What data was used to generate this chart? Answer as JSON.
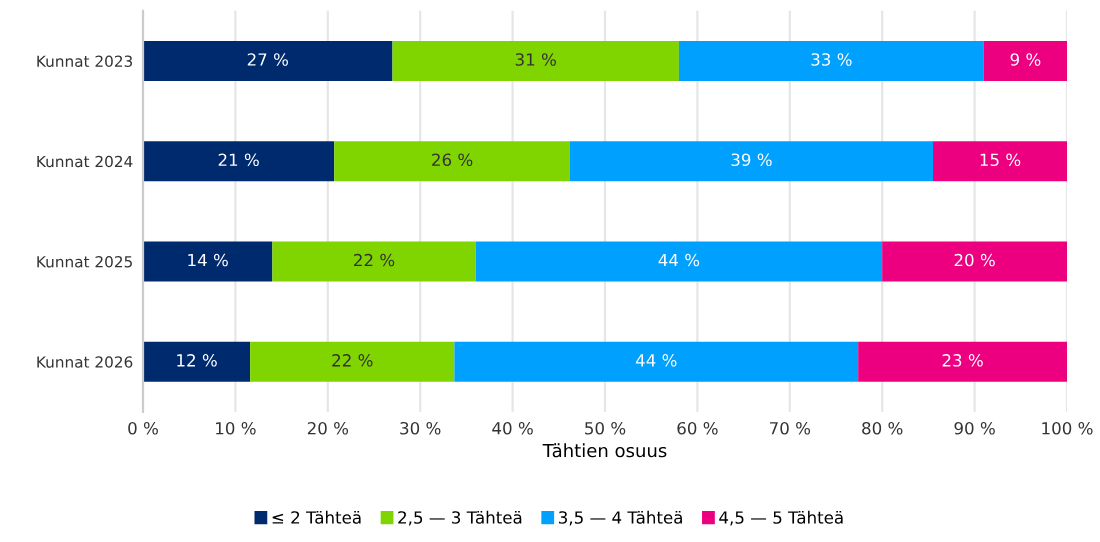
{
  "chart_data": {
    "type": "bar",
    "orientation": "horizontal",
    "stacked": true,
    "categories": [
      "Kunnat 2023",
      "Kunnat 2024",
      "Kunnat 2025",
      "Kunnat 2026"
    ],
    "xlabel": "Tähtien osuus",
    "series": [
      {
        "name": "≤ 2 Tähteä",
        "color": "#002a6e",
        "values": [
          27,
          20.7,
          14,
          11.6
        ],
        "value_labels": [
          "27 %",
          "21 %",
          "14 %",
          "12 %"
        ]
      },
      {
        "name": "2,5 — 3 Tähteä",
        "color": "#80d400",
        "values": [
          31,
          25.5,
          22,
          22.1
        ],
        "value_labels": [
          "31 %",
          "26 %",
          "22 %",
          "22 %"
        ]
      },
      {
        "name": "3,5 — 4 Tähteä",
        "color": "#00a0ff",
        "values": [
          33,
          39.3,
          44,
          43.7
        ],
        "value_labels": [
          "33 %",
          "39 %",
          "44 %",
          "44 %"
        ]
      },
      {
        "name": "4,5 — 5 Tähteä",
        "color": "#ec0080",
        "values": [
          9,
          14.5,
          20,
          22.6
        ],
        "value_labels": [
          "9 %",
          "15 %",
          "20 %",
          "23 %"
        ]
      }
    ],
    "xlim": [
      0,
      100
    ],
    "xticks": [
      {
        "value": 0,
        "label": "0 %"
      },
      {
        "value": 10,
        "label": "10 %"
      },
      {
        "value": 20,
        "label": "20 %"
      },
      {
        "value": 30,
        "label": "30 %"
      },
      {
        "value": 40,
        "label": "40 %"
      },
      {
        "value": 50,
        "label": "50 %"
      },
      {
        "value": 60,
        "label": "60 %"
      },
      {
        "value": 70,
        "label": "70 %"
      },
      {
        "value": 80,
        "label": "80 %"
      },
      {
        "value": 90,
        "label": "90 %"
      },
      {
        "value": 100,
        "label": "100 %"
      }
    ],
    "grid": "x",
    "legend": "bottom"
  }
}
